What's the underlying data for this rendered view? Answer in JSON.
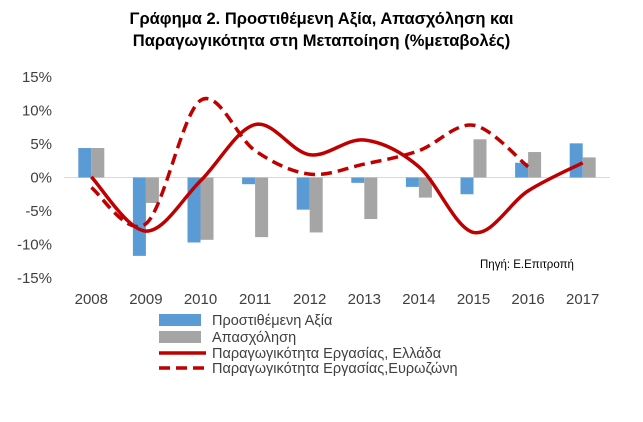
{
  "chart_data": {
    "type": "bar",
    "title": "Γράφημα 2. Προστιθέμενη Αξία, Απασχόληση και",
    "title_line2": "Παραγωγικότητα στη Μεταποίηση (%μεταβολές)",
    "source_note": "Πηγή: Ε.Επιτροπή",
    "categories": [
      "2008",
      "2009",
      "2010",
      "2011",
      "2012",
      "2013",
      "2014",
      "2015",
      "2016",
      "2017"
    ],
    "ylim": [
      -15,
      15
    ],
    "yticks": [
      -15,
      -10,
      -5,
      0,
      5,
      10,
      15
    ],
    "ytick_labels": [
      "-15%",
      "-10%",
      "-5%",
      "0%",
      "5%",
      "10%",
      "15%"
    ],
    "grid": false,
    "legend_position": "bottom",
    "series": [
      {
        "name": "Προστιθέμενη Αξία",
        "type": "bar",
        "color": "#5B9BD5",
        "values": [
          4.4,
          -11.7,
          -9.7,
          -1.0,
          -4.8,
          -0.8,
          -1.4,
          -2.5,
          2.2,
          5.1
        ]
      },
      {
        "name": "Απασχόληση",
        "type": "bar",
        "color": "#A5A5A5",
        "values": [
          4.4,
          -3.8,
          -9.3,
          -8.9,
          -8.2,
          -6.2,
          -3.0,
          5.7,
          3.8,
          3.0
        ]
      },
      {
        "name": "Παραγωγικότητα Εργασίας, Ελλάδα",
        "type": "line",
        "style": "solid",
        "color": "#C00000",
        "values": [
          0.1,
          -8.0,
          -0.5,
          7.9,
          3.4,
          5.6,
          1.6,
          -8.2,
          -2.0,
          2.2
        ]
      },
      {
        "name": "Παραγωγικότητα Εργασίας,Ευρωζώνη",
        "type": "line",
        "style": "dashed",
        "color": "#C00000",
        "values": [
          -1.5,
          -6.9,
          11.5,
          4.0,
          0.5,
          2.0,
          4.0,
          7.8,
          1.6,
          null
        ]
      }
    ]
  }
}
